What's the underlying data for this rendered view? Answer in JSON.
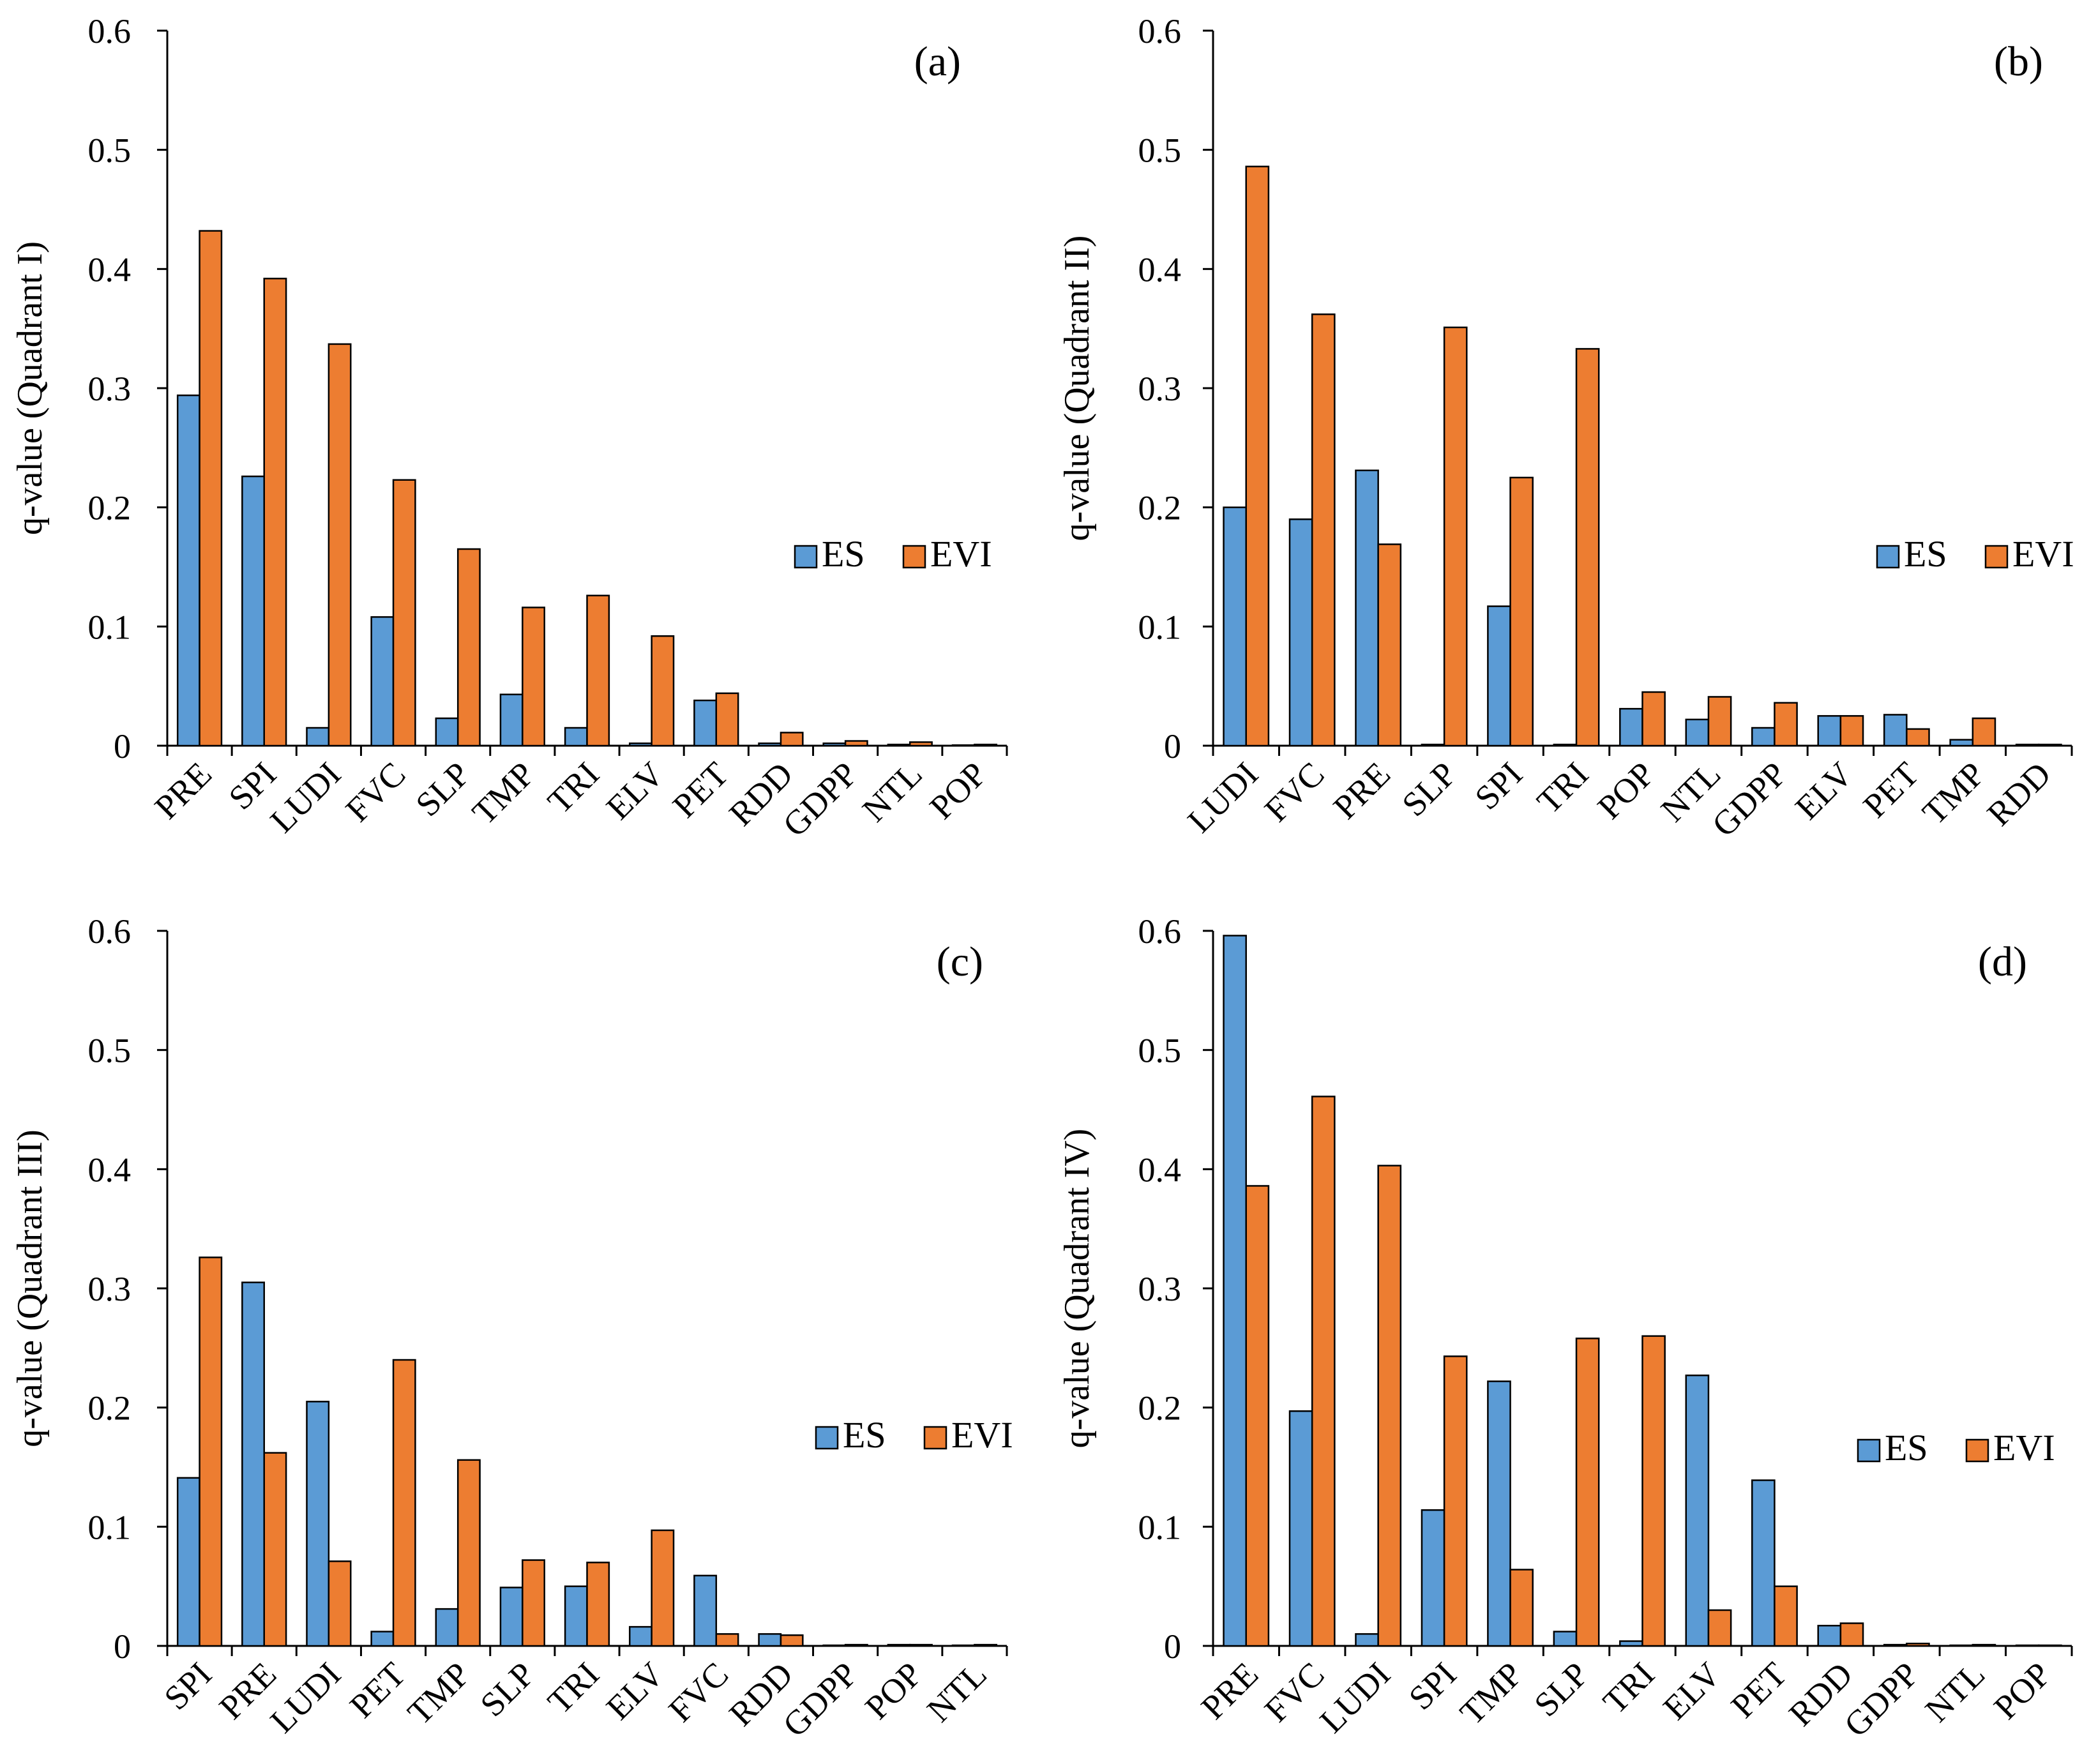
{
  "figure": {
    "series_names": [
      "ES",
      "EVI"
    ],
    "colors": {
      "ES": "#5b9bd5",
      "EVI": "#ed7d31"
    }
  },
  "chart_data": [
    {
      "type": "bar",
      "panel_label": "(a)",
      "ylabel": "q-value (Quadrant I)",
      "ylim": [
        0,
        0.6
      ],
      "yticks": [
        "0",
        "0.1",
        "0.2",
        "0.3",
        "0.4",
        "0.5",
        "0.6"
      ],
      "legend": "center-right",
      "categories": [
        "PRE",
        "SPI",
        "LUDI",
        "FVC",
        "SLP",
        "TMP",
        "TRI",
        "ELV",
        "PET",
        "RDD",
        "GDPP",
        "NTL",
        "POP"
      ],
      "series": [
        {
          "name": "ES",
          "values": [
            0.294,
            0.226,
            0.015,
            0.108,
            0.023,
            0.043,
            0.015,
            0.002,
            0.038,
            0.002,
            0.002,
            0.001,
            0.0005
          ]
        },
        {
          "name": "EVI",
          "values": [
            0.432,
            0.392,
            0.337,
            0.223,
            0.165,
            0.116,
            0.126,
            0.092,
            0.044,
            0.011,
            0.004,
            0.003,
            0.001
          ]
        }
      ]
    },
    {
      "type": "bar",
      "panel_label": "(b)",
      "ylabel": "q-value (Quadrant II)",
      "ylim": [
        0,
        0.6
      ],
      "yticks": [
        "0",
        "0.1",
        "0.2",
        "0.3",
        "0.4",
        "0.5",
        "0.6"
      ],
      "legend": "center-right",
      "categories": [
        "LUDI",
        "FVC",
        "PRE",
        "SLP",
        "SPI",
        "TRI",
        "POP",
        "NTL",
        "GDPP",
        "ELV",
        "PET",
        "TMP",
        "RDD"
      ],
      "series": [
        {
          "name": "ES",
          "values": [
            0.2,
            0.19,
            0.231,
            0.001,
            0.117,
            0.001,
            0.031,
            0.022,
            0.015,
            0.025,
            0.026,
            0.005,
            0.001
          ]
        },
        {
          "name": "EVI",
          "values": [
            0.486,
            0.362,
            0.169,
            0.351,
            0.225,
            0.333,
            0.045,
            0.041,
            0.036,
            0.025,
            0.014,
            0.023,
            0.001
          ]
        }
      ]
    },
    {
      "type": "bar",
      "panel_label": "(c)",
      "ylabel": "q-value (Quadrant III)",
      "ylim": [
        0,
        0.6
      ],
      "yticks": [
        "0",
        "0.1",
        "0.2",
        "0.3",
        "0.4",
        "0.5",
        "0.6"
      ],
      "legend": "center-right",
      "categories": [
        "SPI",
        "PRE",
        "LUDI",
        "PET",
        "TMP",
        "SLP",
        "TRI",
        "ELV",
        "FVC",
        "RDD",
        "GDPP",
        "POP",
        "NTL"
      ],
      "series": [
        {
          "name": "ES",
          "values": [
            0.141,
            0.305,
            0.205,
            0.012,
            0.031,
            0.049,
            0.05,
            0.016,
            0.059,
            0.01,
            0.0005,
            0.001,
            0.0005
          ]
        },
        {
          "name": "EVI",
          "values": [
            0.326,
            0.162,
            0.071,
            0.24,
            0.156,
            0.072,
            0.07,
            0.097,
            0.01,
            0.009,
            0.001,
            0.001,
            0.001
          ]
        }
      ]
    },
    {
      "type": "bar",
      "panel_label": "(d)",
      "ylabel": "q-value (Quadrant IV)",
      "ylim": [
        0,
        0.6
      ],
      "yticks": [
        "0",
        "0.1",
        "0.2",
        "0.3",
        "0.4",
        "0.5",
        "0.6"
      ],
      "legend": "center-right",
      "categories": [
        "PRE",
        "FVC",
        "LUDI",
        "SPI",
        "TMP",
        "SLP",
        "TRI",
        "ELV",
        "PET",
        "RDD",
        "GDPP",
        "NTL",
        "POP"
      ],
      "series": [
        {
          "name": "ES",
          "values": [
            0.596,
            0.197,
            0.01,
            0.114,
            0.222,
            0.012,
            0.004,
            0.227,
            0.139,
            0.017,
            0.001,
            0.0005,
            0.0005
          ]
        },
        {
          "name": "EVI",
          "values": [
            0.386,
            0.461,
            0.403,
            0.243,
            0.064,
            0.258,
            0.26,
            0.03,
            0.05,
            0.019,
            0.002,
            0.001,
            0.0005
          ]
        }
      ]
    }
  ]
}
